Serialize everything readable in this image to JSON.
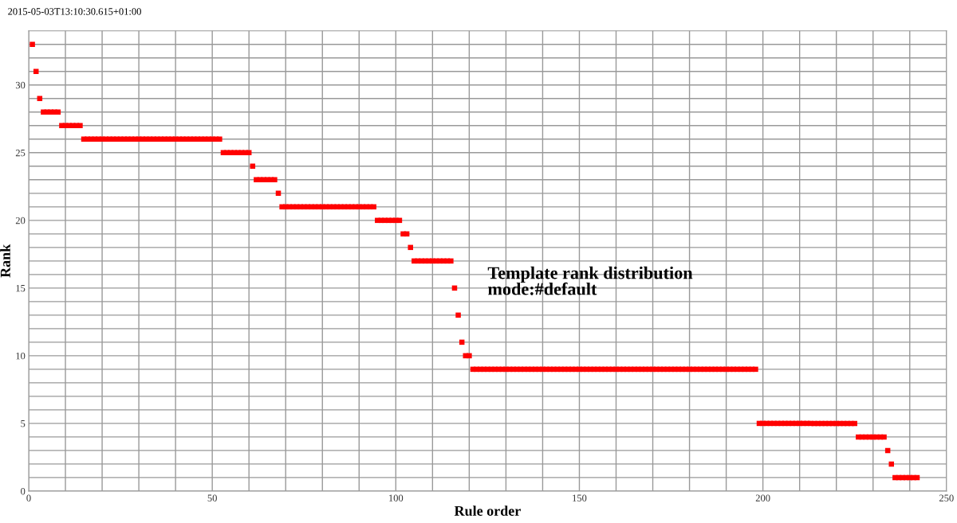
{
  "chart_data": {
    "type": "scatter",
    "title": "Template rank distribution\nmode:#default",
    "annotations": [
      "2015-05-03T13:10:30.615+01:00"
    ],
    "xlabel": "Rule order",
    "ylabel": "Rank",
    "series": [
      {
        "color": "#ff0000",
        "marker": "square",
        "x": [
          1,
          2,
          3,
          4,
          5,
          6,
          7,
          8,
          9,
          10,
          11,
          12,
          13,
          14,
          15,
          16,
          17,
          18,
          19,
          20,
          21,
          22,
          23,
          24,
          25,
          26,
          27,
          28,
          29,
          30,
          31,
          32,
          33,
          34,
          35,
          36,
          37,
          38,
          39,
          40,
          41,
          42,
          43,
          44,
          45,
          46,
          47,
          48,
          49,
          50,
          51,
          52,
          53,
          54,
          55,
          56,
          57,
          58,
          59,
          60,
          61,
          62,
          63,
          64,
          65,
          66,
          67,
          68,
          69,
          70,
          71,
          72,
          73,
          74,
          75,
          76,
          77,
          78,
          79,
          80,
          81,
          82,
          83,
          84,
          85,
          86,
          87,
          88,
          89,
          90,
          91,
          92,
          93,
          94,
          95,
          96,
          97,
          98,
          99,
          100,
          101,
          102,
          103,
          104,
          105,
          106,
          107,
          108,
          109,
          110,
          111,
          112,
          113,
          114,
          115,
          116,
          117,
          118,
          119,
          120,
          121,
          122,
          123,
          124,
          125,
          126,
          127,
          128,
          129,
          130,
          131,
          132,
          133,
          134,
          135,
          136,
          137,
          138,
          139,
          140,
          141,
          142,
          143,
          144,
          145,
          146,
          147,
          148,
          149,
          150,
          151,
          152,
          153,
          154,
          155,
          156,
          157,
          158,
          159,
          160,
          161,
          162,
          163,
          164,
          165,
          166,
          167,
          168,
          169,
          170,
          171,
          172,
          173,
          174,
          175,
          176,
          177,
          178,
          179,
          180,
          181,
          182,
          183,
          184,
          185,
          186,
          187,
          188,
          189,
          190,
          191,
          192,
          193,
          194,
          195,
          196,
          197,
          198,
          199,
          200,
          201,
          202,
          203,
          204,
          205,
          206,
          207,
          208,
          209,
          210,
          211,
          212,
          213,
          214,
          215,
          216,
          217,
          218,
          219,
          220,
          221,
          222,
          223,
          224,
          225,
          226,
          227,
          228,
          229,
          230,
          231,
          232,
          233,
          234,
          235,
          236,
          237,
          238,
          239,
          240,
          241,
          242
        ],
        "values": [
          33,
          31,
          29,
          28,
          28,
          28,
          28,
          28,
          27,
          27,
          27,
          27,
          27,
          27,
          26,
          26,
          26,
          26,
          26,
          26,
          26,
          26,
          26,
          26,
          26,
          26,
          26,
          26,
          26,
          26,
          26,
          26,
          26,
          26,
          26,
          26,
          26,
          26,
          26,
          26,
          26,
          26,
          26,
          26,
          26,
          26,
          26,
          26,
          26,
          26,
          26,
          26,
          25,
          25,
          25,
          25,
          25,
          25,
          25,
          25,
          24,
          23,
          23,
          23,
          23,
          23,
          23,
          22,
          21,
          21,
          21,
          21,
          21,
          21,
          21,
          21,
          21,
          21,
          21,
          21,
          21,
          21,
          21,
          21,
          21,
          21,
          21,
          21,
          21,
          21,
          21,
          21,
          21,
          21,
          20,
          20,
          20,
          20,
          20,
          20,
          20,
          19,
          19,
          18,
          17,
          17,
          17,
          17,
          17,
          17,
          17,
          17,
          17,
          17,
          17,
          15,
          13,
          11,
          10,
          10,
          9,
          9,
          9,
          9,
          9,
          9,
          9,
          9,
          9,
          9,
          9,
          9,
          9,
          9,
          9,
          9,
          9,
          9,
          9,
          9,
          9,
          9,
          9,
          9,
          9,
          9,
          9,
          9,
          9,
          9,
          9,
          9,
          9,
          9,
          9,
          9,
          9,
          9,
          9,
          9,
          9,
          9,
          9,
          9,
          9,
          9,
          9,
          9,
          9,
          9,
          9,
          9,
          9,
          9,
          9,
          9,
          9,
          9,
          9,
          9,
          9,
          9,
          9,
          9,
          9,
          9,
          9,
          9,
          9,
          9,
          9,
          9,
          9,
          9,
          9,
          9,
          9,
          9,
          5,
          5,
          5,
          5,
          5,
          5,
          5,
          5,
          5,
          5,
          5,
          5,
          5,
          5,
          5,
          5,
          5,
          5,
          5,
          5,
          5,
          5,
          5,
          5,
          5,
          5,
          5,
          4,
          4,
          4,
          4,
          4,
          4,
          4,
          4,
          3,
          2,
          1,
          1,
          1,
          1,
          1,
          1,
          1
        ]
      }
    ],
    "xlim": [
      0,
      250
    ],
    "xticks": [
      0,
      {
        "value": 10,
        "label": null
      },
      {
        "value": 20,
        "label": null
      },
      {
        "value": 30,
        "label": null
      },
      {
        "value": 40,
        "label": null
      },
      50,
      {
        "value": 60,
        "label": null
      },
      {
        "value": 70,
        "label": null
      },
      {
        "value": 80,
        "label": null
      },
      {
        "value": 90,
        "label": null
      },
      100,
      {
        "value": 110,
        "label": null
      },
      {
        "value": 120,
        "label": null
      },
      {
        "value": 130,
        "label": null
      },
      {
        "value": 140,
        "label": null
      },
      150,
      {
        "value": 160,
        "label": null
      },
      {
        "value": 170,
        "label": null
      },
      {
        "value": 180,
        "label": null
      },
      {
        "value": 190,
        "label": null
      },
      200,
      {
        "value": 210,
        "label": null
      },
      {
        "value": 220,
        "label": null
      },
      {
        "value": 230,
        "label": null
      },
      {
        "value": 240,
        "label": null
      },
      250
    ],
    "ylim": [
      0,
      34
    ],
    "yticks": [
      0,
      {
        "value": 1,
        "label": null
      },
      {
        "value": 2,
        "label": null
      },
      {
        "value": 3,
        "label": null
      },
      {
        "value": 4,
        "label": null
      },
      5,
      {
        "value": 6,
        "label": null
      },
      {
        "value": 7,
        "label": null
      },
      {
        "value": 8,
        "label": null
      },
      {
        "value": 9,
        "label": null
      },
      10,
      {
        "value": 11,
        "label": null
      },
      {
        "value": 12,
        "label": null
      },
      {
        "value": 13,
        "label": null
      },
      {
        "value": 14,
        "label": null
      },
      15,
      {
        "value": 16,
        "label": null
      },
      {
        "value": 17,
        "label": null
      },
      {
        "value": 18,
        "label": null
      },
      {
        "value": 19,
        "label": null
      },
      20,
      {
        "value": 21,
        "label": null
      },
      {
        "value": 22,
        "label": null
      },
      {
        "value": 23,
        "label": null
      },
      {
        "value": 24,
        "label": null
      },
      25,
      {
        "value": 26,
        "label": null
      },
      {
        "value": 27,
        "label": null
      },
      {
        "value": 28,
        "label": null
      },
      {
        "value": 29,
        "label": null
      },
      30,
      {
        "value": 31,
        "label": null
      },
      {
        "value": 32,
        "label": null
      },
      {
        "value": 33,
        "label": null
      }
    ],
    "grid": true,
    "legend": false
  }
}
